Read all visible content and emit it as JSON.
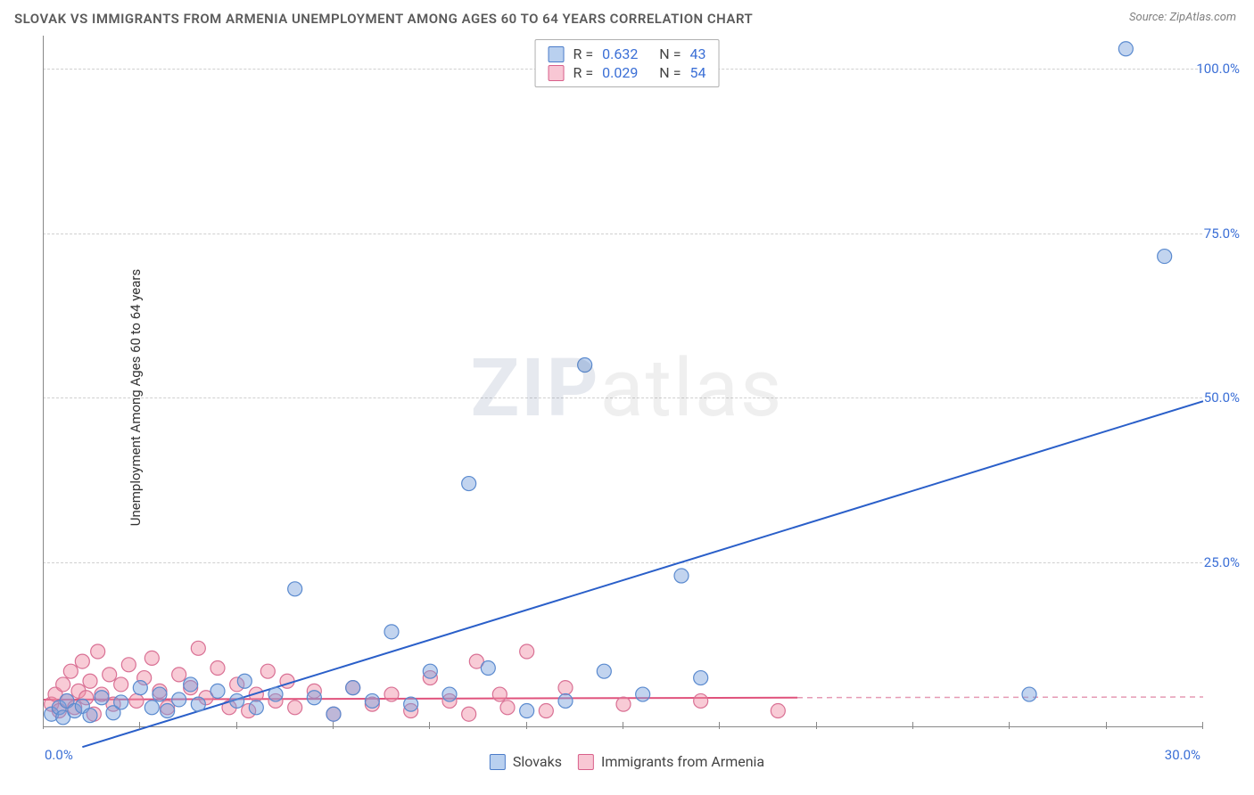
{
  "title": "SLOVAK VS IMMIGRANTS FROM ARMENIA UNEMPLOYMENT AMONG AGES 60 TO 64 YEARS CORRELATION CHART",
  "source_label": "Source: ",
  "source_name": "ZipAtlas.com",
  "ylabel": "Unemployment Among Ages 60 to 64 years",
  "watermark_bold": "ZIP",
  "watermark_light": "atlas",
  "chart": {
    "type": "scatter",
    "xlim": [
      0,
      30
    ],
    "ylim": [
      0,
      105
    ],
    "ytick_labels": [
      "25.0%",
      "50.0%",
      "75.0%",
      "100.0%"
    ],
    "ytick_values": [
      25,
      50,
      75,
      100
    ],
    "xtick_start": "0.0%",
    "xtick_end": "30.0%",
    "xtick_marks": [
      0,
      2.5,
      5,
      7.5,
      10,
      12.5,
      15,
      17.5,
      20,
      22.5,
      25,
      27.5,
      30
    ],
    "grid_color": "#d0d0d0",
    "background_color": "#ffffff",
    "series": [
      {
        "name": "Slovaks",
        "color_fill": "rgba(120,160,220,0.45)",
        "color_stroke": "#5a8acf",
        "marker_radius": 8,
        "r_value": "0.632",
        "n_value": "43",
        "trendline": {
          "x1": 1.0,
          "y1": -3,
          "x2": 30.0,
          "y2": 49.5,
          "color": "#2a5fc9",
          "width": 2,
          "dash": "none"
        },
        "points": [
          [
            0.2,
            2.0
          ],
          [
            0.4,
            3.0
          ],
          [
            0.5,
            1.5
          ],
          [
            0.6,
            4.0
          ],
          [
            0.8,
            2.5
          ],
          [
            1.0,
            3.2
          ],
          [
            1.2,
            1.8
          ],
          [
            1.5,
            4.5
          ],
          [
            1.8,
            2.2
          ],
          [
            2.0,
            3.8
          ],
          [
            2.5,
            6.0
          ],
          [
            2.8,
            3.0
          ],
          [
            3.0,
            5.0
          ],
          [
            3.2,
            2.5
          ],
          [
            3.5,
            4.2
          ],
          [
            3.8,
            6.5
          ],
          [
            4.0,
            3.5
          ],
          [
            4.5,
            5.5
          ],
          [
            5.0,
            4.0
          ],
          [
            5.2,
            7.0
          ],
          [
            5.5,
            3.0
          ],
          [
            6.0,
            5.0
          ],
          [
            6.5,
            21.0
          ],
          [
            7.0,
            4.5
          ],
          [
            7.5,
            2.0
          ],
          [
            8.0,
            6.0
          ],
          [
            8.5,
            4.0
          ],
          [
            9.0,
            14.5
          ],
          [
            9.5,
            3.5
          ],
          [
            10.0,
            8.5
          ],
          [
            10.5,
            5.0
          ],
          [
            11.0,
            37.0
          ],
          [
            11.5,
            9.0
          ],
          [
            12.5,
            2.5
          ],
          [
            13.5,
            4.0
          ],
          [
            14.0,
            55.0
          ],
          [
            14.5,
            8.5
          ],
          [
            15.5,
            5.0
          ],
          [
            16.5,
            23.0
          ],
          [
            17.0,
            7.5
          ],
          [
            25.5,
            5.0
          ],
          [
            28.0,
            103.0
          ],
          [
            29.0,
            71.5
          ]
        ]
      },
      {
        "name": "Immigrants from Armenia",
        "color_fill": "rgba(240,140,165,0.45)",
        "color_stroke": "#d97094",
        "marker_radius": 8,
        "r_value": "0.029",
        "n_value": "54",
        "trendline": {
          "x1": 0,
          "y1": 4.2,
          "x2": 19.5,
          "y2": 4.5,
          "color": "#e0527c",
          "width": 2,
          "dash": "none"
        },
        "trendline_dash": {
          "x1": 19.5,
          "y1": 4.5,
          "x2": 30.0,
          "y2": 4.6,
          "color": "#e59ab4",
          "width": 1.5,
          "dash": "6,5"
        },
        "points": [
          [
            0.2,
            3.5
          ],
          [
            0.3,
            5.0
          ],
          [
            0.4,
            2.5
          ],
          [
            0.5,
            6.5
          ],
          [
            0.6,
            4.0
          ],
          [
            0.7,
            8.5
          ],
          [
            0.8,
            3.0
          ],
          [
            0.9,
            5.5
          ],
          [
            1.0,
            10.0
          ],
          [
            1.1,
            4.5
          ],
          [
            1.2,
            7.0
          ],
          [
            1.3,
            2.0
          ],
          [
            1.4,
            11.5
          ],
          [
            1.5,
            5.0
          ],
          [
            1.7,
            8.0
          ],
          [
            1.8,
            3.5
          ],
          [
            2.0,
            6.5
          ],
          [
            2.2,
            9.5
          ],
          [
            2.4,
            4.0
          ],
          [
            2.6,
            7.5
          ],
          [
            2.8,
            10.5
          ],
          [
            3.0,
            5.5
          ],
          [
            3.2,
            3.0
          ],
          [
            3.5,
            8.0
          ],
          [
            3.8,
            6.0
          ],
          [
            4.0,
            12.0
          ],
          [
            4.2,
            4.5
          ],
          [
            4.5,
            9.0
          ],
          [
            4.8,
            3.0
          ],
          [
            5.0,
            6.5
          ],
          [
            5.3,
            2.5
          ],
          [
            5.5,
            5.0
          ],
          [
            5.8,
            8.5
          ],
          [
            6.0,
            4.0
          ],
          [
            6.3,
            7.0
          ],
          [
            6.5,
            3.0
          ],
          [
            7.0,
            5.5
          ],
          [
            7.5,
            2.0
          ],
          [
            8.0,
            6.0
          ],
          [
            8.5,
            3.5
          ],
          [
            9.0,
            5.0
          ],
          [
            9.5,
            2.5
          ],
          [
            10.0,
            7.5
          ],
          [
            10.5,
            4.0
          ],
          [
            11.0,
            2.0
          ],
          [
            11.2,
            10.0
          ],
          [
            11.8,
            5.0
          ],
          [
            12.0,
            3.0
          ],
          [
            12.5,
            11.5
          ],
          [
            13.0,
            2.5
          ],
          [
            13.5,
            6.0
          ],
          [
            15.0,
            3.5
          ],
          [
            17.0,
            4.0
          ],
          [
            19.0,
            2.5
          ]
        ]
      }
    ]
  },
  "stats_box": {
    "r_label": "R =",
    "n_label": "N ="
  },
  "legend": {
    "label1": "Slovaks",
    "label2": "Immigrants from Armenia"
  },
  "colors": {
    "title": "#5a5a5a",
    "axis_text": "#3b6fd6",
    "text": "#333333"
  }
}
